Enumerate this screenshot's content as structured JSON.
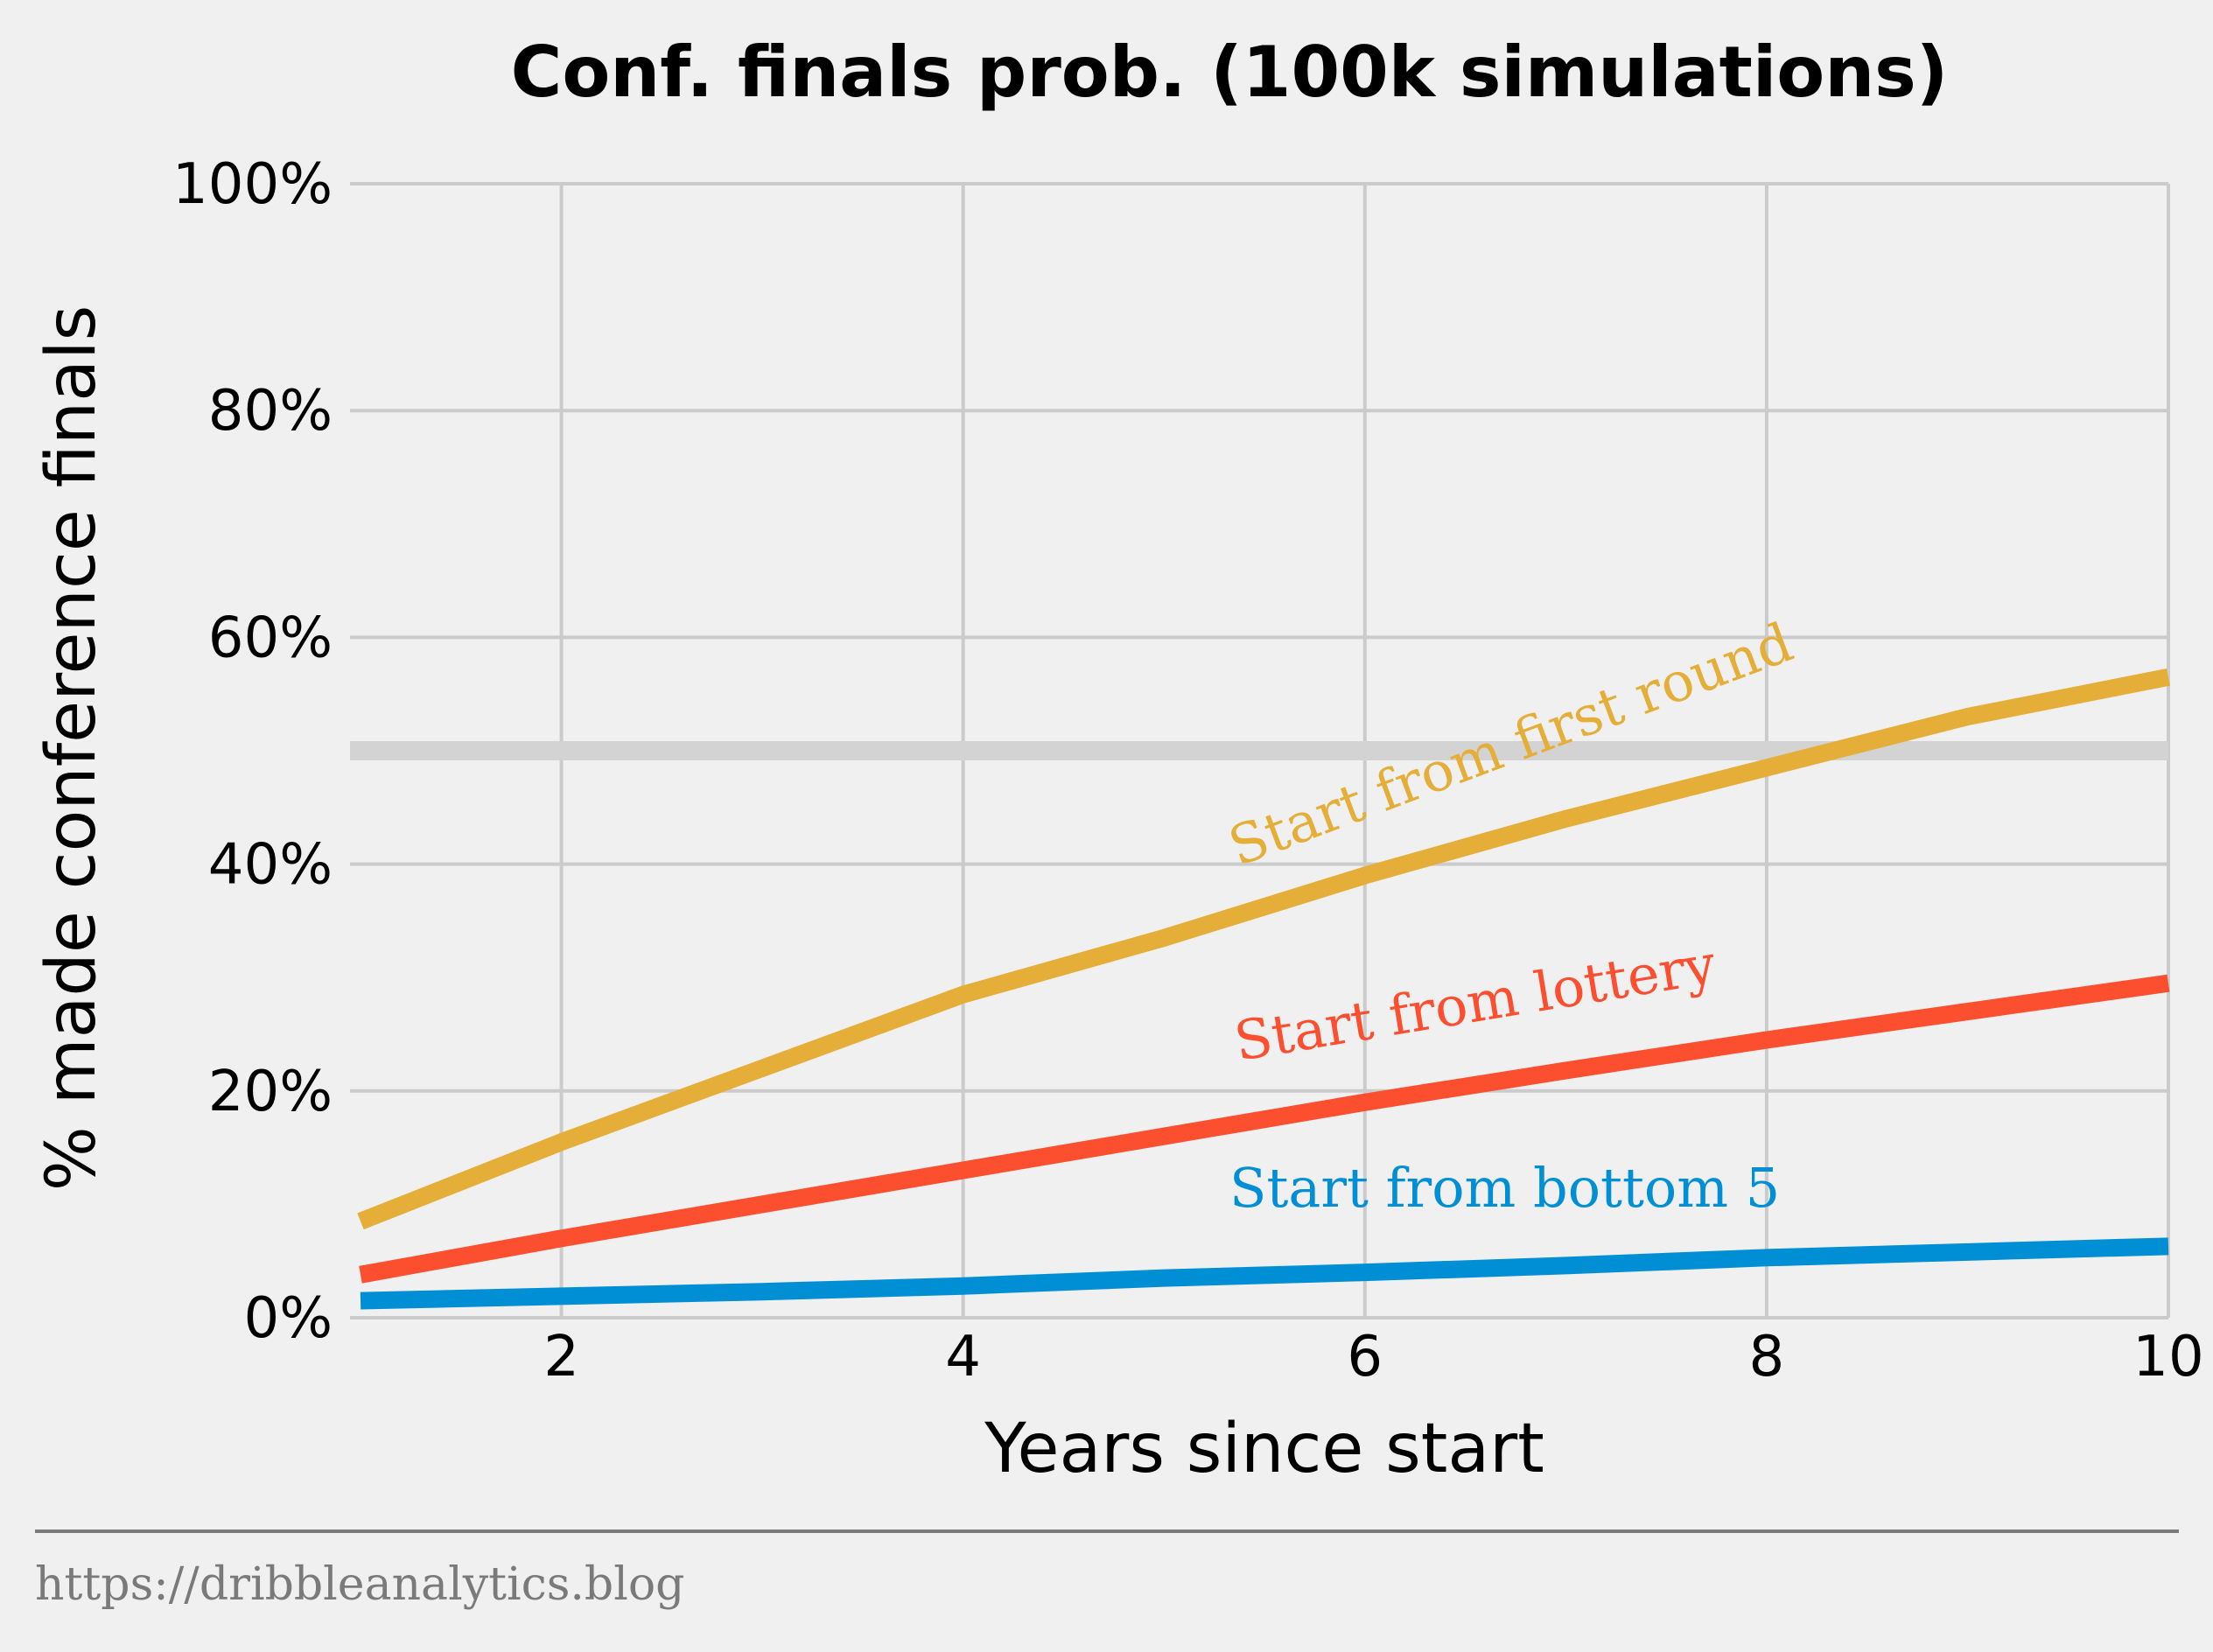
{
  "chart_data": {
    "type": "line",
    "title": "Conf. finals prob. (100k simulations)",
    "xlabel": "Years since start",
    "ylabel": "% made conference finals",
    "xlim": [
      1,
      10
    ],
    "ylim": [
      0,
      100
    ],
    "x_ticks": [
      2,
      4,
      6,
      8,
      10
    ],
    "y_ticks": [
      0,
      20,
      40,
      60,
      80,
      100
    ],
    "y_tick_format": "percent",
    "grid": true,
    "reference_line": {
      "y": 50,
      "color": "#d3d3d3"
    },
    "x": [
      1,
      2,
      3,
      4,
      5,
      6,
      7,
      8,
      9,
      10
    ],
    "series": [
      {
        "name": "Start from first round",
        "color": "#e5ae38",
        "values": [
          8.5,
          15.5,
          22,
          28.5,
          33.5,
          39,
          44,
          48.5,
          53,
          56.5
        ]
      },
      {
        "name": "Start from lottery",
        "color": "#fc4f30",
        "values": [
          3.8,
          7,
          10,
          13,
          16,
          19,
          21.8,
          24.5,
          27,
          29.5
        ]
      },
      {
        "name": "Start from bottom 5",
        "color": "#008fd5",
        "values": [
          1.5,
          1.9,
          2.3,
          2.8,
          3.5,
          4,
          4.6,
          5.3,
          5.8,
          6.3
        ]
      }
    ]
  },
  "footer": {
    "source": "https://dribbleanalytics.blog"
  }
}
